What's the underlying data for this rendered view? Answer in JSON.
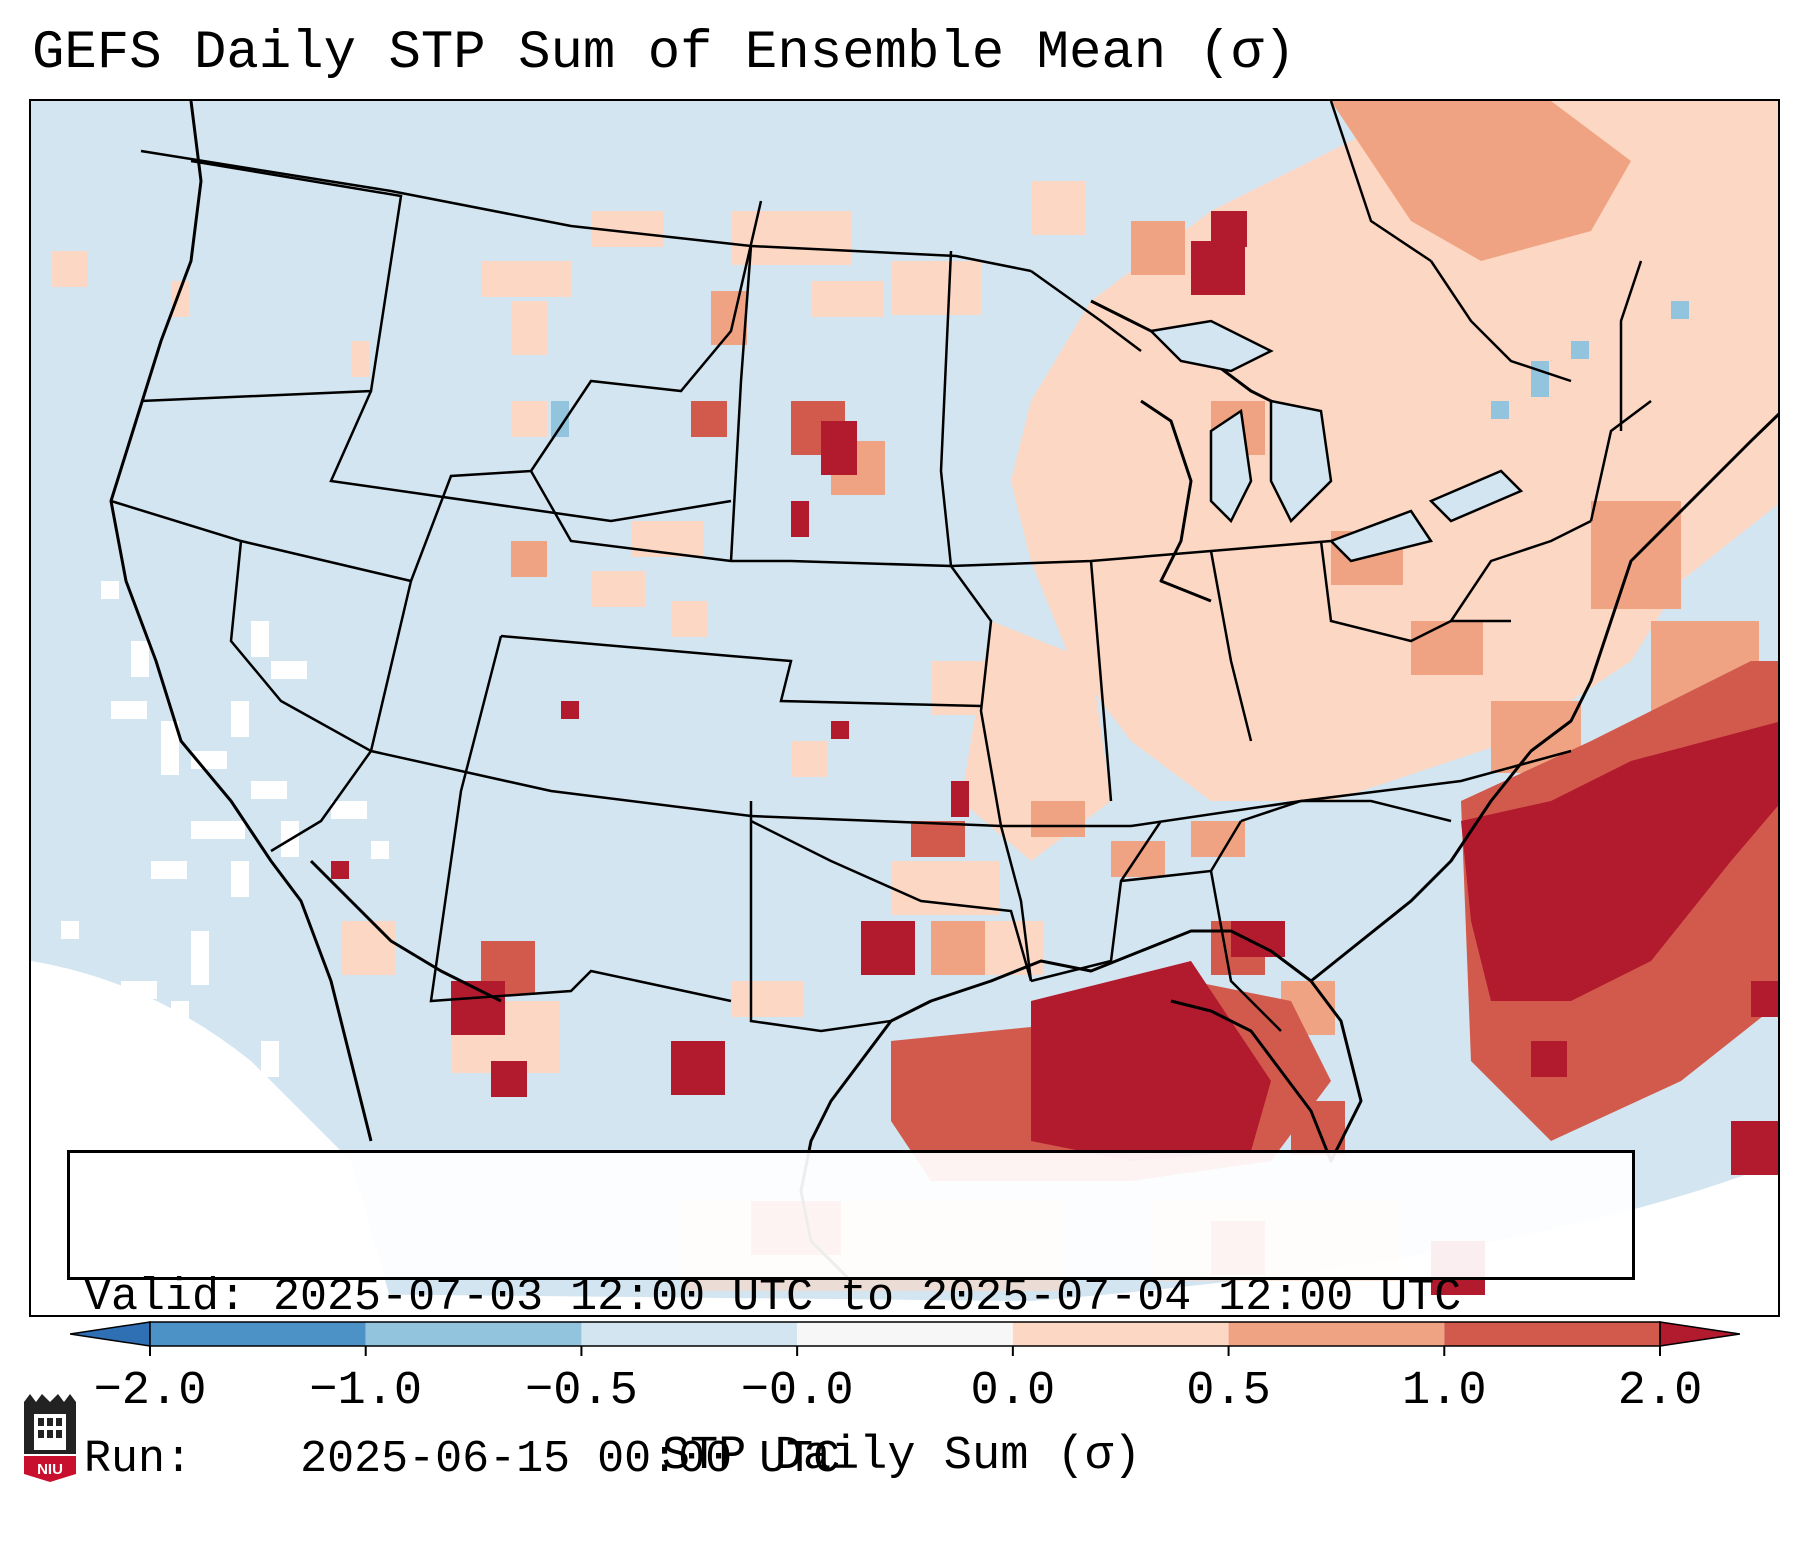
{
  "title": "GEFS Daily STP Sum of Ensemble Mean (σ)",
  "info": {
    "valid_label": "Valid:",
    "valid_value": "2025-07-03 12:00 UTC to 2025-07-04 12:00 UTC",
    "run_label": "Run:",
    "run_value": "2025-06-15 00:00 UTC"
  },
  "colorbar": {
    "label": "STP Daily Sum (σ)",
    "tick_labels": [
      "−2.0",
      "−1.0",
      "−0.5",
      "−0.0",
      "0.0",
      "0.5",
      "1.0",
      "2.0"
    ],
    "bins": [
      {
        "range": "<-2.0",
        "color": "#2f6fb3"
      },
      {
        "range": "-2.0 to -1.0",
        "color": "#4d92c6"
      },
      {
        "range": "-1.0 to -0.5",
        "color": "#93c4de"
      },
      {
        "range": "-0.5 to -0.0",
        "color": "#d2e5f0"
      },
      {
        "range": "-0.0 to 0.0",
        "color": "#f7f7f7"
      },
      {
        "range": "0.0 to 0.5",
        "color": "#fcd7c3"
      },
      {
        "range": "0.5 to 1.0",
        "color": "#f0a383"
      },
      {
        "range": "1.0 to 2.0",
        "color": "#d25a4d"
      },
      {
        "range": ">2.0",
        "color": "#b21a2e"
      }
    ]
  },
  "logo": {
    "text": "NIU"
  }
}
